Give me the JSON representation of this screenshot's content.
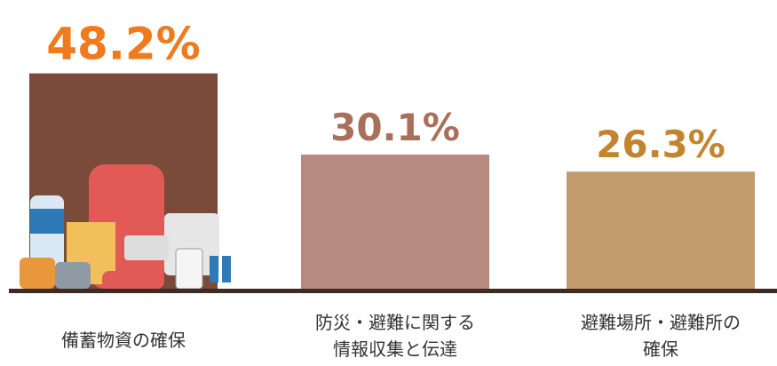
{
  "chart_data": {
    "type": "bar",
    "categories": [
      [
        "備蓄物資の確保"
      ],
      [
        "防災・避難に関する",
        "情報収集と伝達"
      ],
      [
        "避難場所・避難所の",
        "確保"
      ]
    ],
    "values": [
      48.2,
      30.1,
      26.3
    ],
    "value_labels": [
      "48.2%",
      "30.1%",
      "26.3%"
    ],
    "colors": [
      "#7a4a3b",
      "#b68a7f",
      "#c29c6e"
    ],
    "label_colors": [
      "#f07a1e",
      "#a8705a",
      "#c4842f"
    ]
  }
}
